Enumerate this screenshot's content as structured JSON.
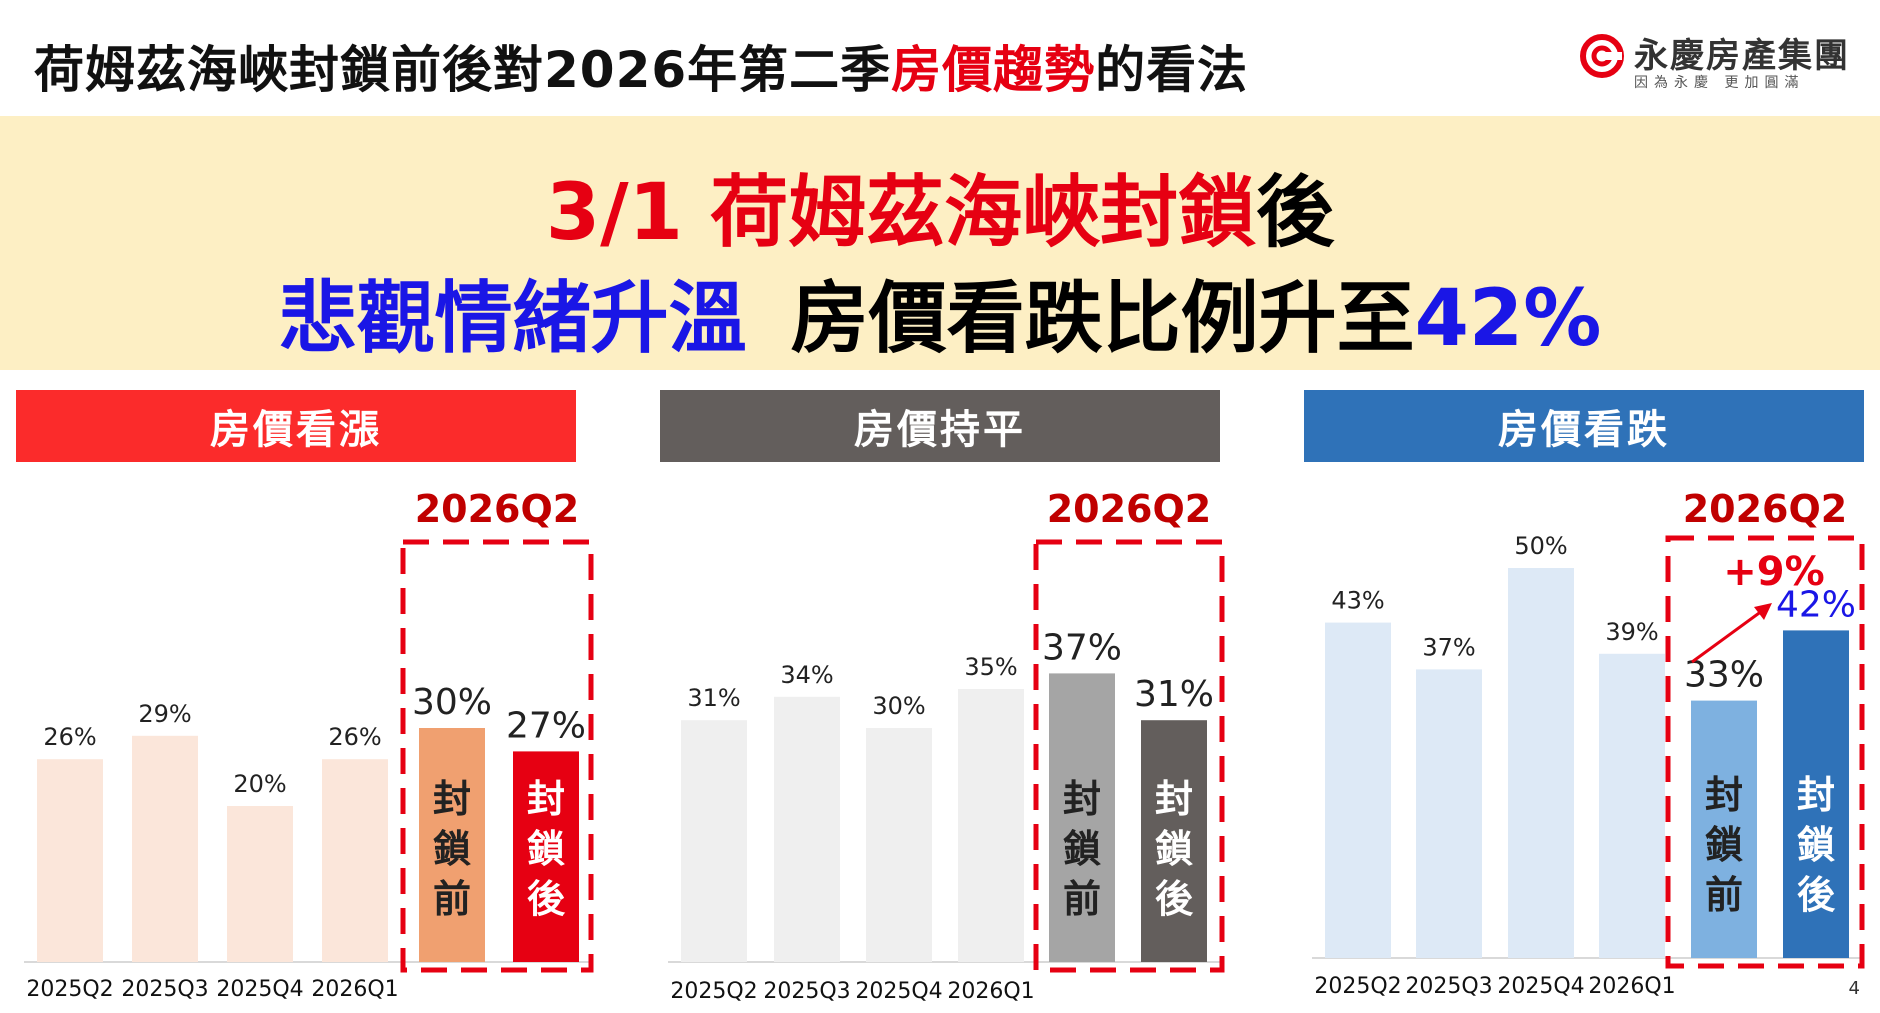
{
  "title": {
    "prefix": "荷姆茲海峽封鎖前後對2026年第二季",
    "highlight": "房價趨勢",
    "suffix": "的看法"
  },
  "logo": {
    "name": "永慶房產集團",
    "tagline": "因為永慶 更加圓滿"
  },
  "banner": {
    "line1_red": "3/1 荷姆茲海峽封鎖",
    "line1_black": "後",
    "line2_blue": "悲觀情緒升溫",
    "line2_black": "房價看跌比例升至",
    "line2_blue_pct": "42%"
  },
  "page_number": "4",
  "colors": {
    "accent_red": "#e60012",
    "panel_up": "#fb2b2b",
    "panel_flat": "#635e5c",
    "panel_down": "#2f72b8",
    "banner_bg": "#fdefc4"
  },
  "chart_data": [
    {
      "type": "bar",
      "title": "房價看漲",
      "categories": [
        "2025Q2",
        "2025Q3",
        "2025Q4",
        "2026Q1",
        "封鎖前",
        "封鎖後"
      ],
      "values": [
        26,
        29,
        20,
        26,
        30,
        27
      ],
      "value_labels": [
        "26%",
        "29%",
        "20%",
        "26%",
        "30%",
        "27%"
      ],
      "highlight_group_label": "2026Q2",
      "colors": [
        "#fbe6da",
        "#fbe6da",
        "#fbe6da",
        "#fbe6da",
        "#f0a070",
        "#e60012"
      ],
      "unit": "%"
    },
    {
      "type": "bar",
      "title": "房價持平",
      "categories": [
        "2025Q2",
        "2025Q3",
        "2025Q4",
        "2026Q1",
        "封鎖前",
        "封鎖後"
      ],
      "values": [
        31,
        34,
        30,
        35,
        37,
        31
      ],
      "value_labels": [
        "31%",
        "34%",
        "30%",
        "35%",
        "37%",
        "31%"
      ],
      "highlight_group_label": "2026Q2",
      "colors": [
        "#efefef",
        "#efefef",
        "#efefef",
        "#efefef",
        "#a5a5a5",
        "#635e5c"
      ],
      "unit": "%"
    },
    {
      "type": "bar",
      "title": "房價看跌",
      "categories": [
        "2025Q2",
        "2025Q3",
        "2025Q4",
        "2026Q1",
        "封鎖前",
        "封鎖後"
      ],
      "values": [
        43,
        37,
        50,
        39,
        33,
        42
      ],
      "value_labels": [
        "43%",
        "37%",
        "50%",
        "39%",
        "33%",
        "42%"
      ],
      "highlight_group_label": "2026Q2",
      "annotation": "+9%",
      "colors": [
        "#dde9f6",
        "#dde9f6",
        "#dde9f6",
        "#dde9f6",
        "#7eb1e0",
        "#2f72b8"
      ],
      "unit": "%"
    }
  ]
}
